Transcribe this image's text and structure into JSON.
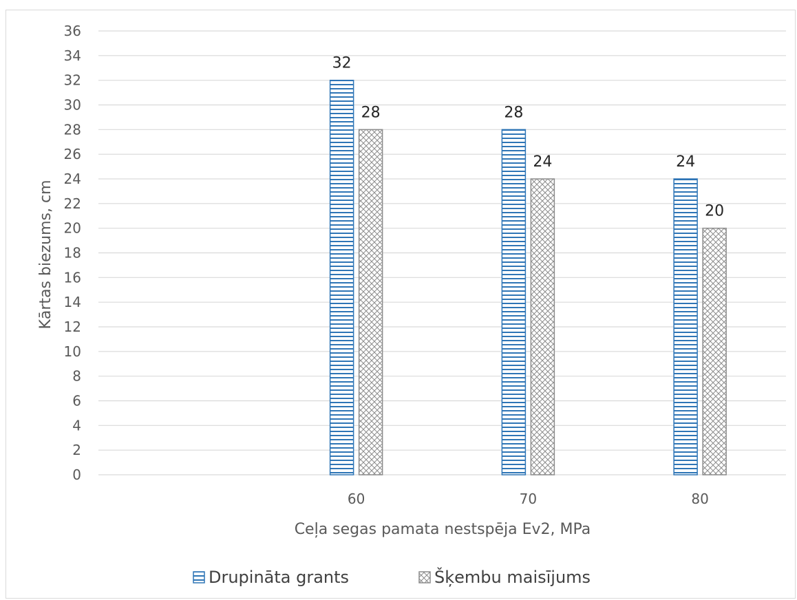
{
  "chart_data": {
    "type": "bar",
    "categories": [
      "60",
      "70",
      "80"
    ],
    "series": [
      {
        "name": "Drupināta grants",
        "values": [
          32,
          28,
          24
        ],
        "color": "#2e75b6",
        "pattern": "horizontal-lines"
      },
      {
        "name": "Šķembu maisījums",
        "values": [
          28,
          24,
          20
        ],
        "color": "#7f7f7f",
        "pattern": "crosshatch"
      }
    ],
    "title": "",
    "xlabel": "Ceļa segas pamata nestspēja Ev2, MPa",
    "ylabel": "Kārtas biezums, cm",
    "ylim": [
      0,
      36
    ],
    "ytick_step": 2,
    "yticks": [
      "0",
      "2",
      "4",
      "6",
      "8",
      "10",
      "12",
      "14",
      "16",
      "18",
      "20",
      "22",
      "24",
      "26",
      "28",
      "30",
      "32",
      "34",
      "36"
    ],
    "grid": true,
    "data_labels": true,
    "legend_position": "bottom"
  }
}
